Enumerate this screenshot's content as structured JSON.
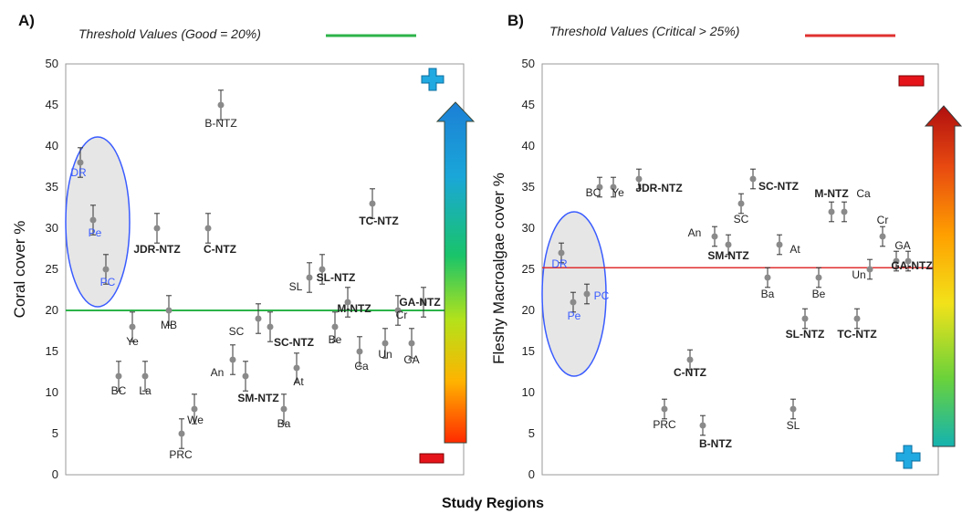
{
  "xlabel": "Study Regions",
  "colors": {
    "good_line": "#2db34a",
    "critical_line": "#e03030",
    "point": "#8a8a8a",
    "errorbar": "#333333",
    "ellipse_stroke": "#3a5cff",
    "ellipse_fill": "#e6e6e6",
    "blue_label": "#3a5cff",
    "plus_icon": "#21a9e1",
    "minus_icon": "#e5141b"
  },
  "icons": {
    "plus": "plus-icon",
    "minus": "minus-icon",
    "arrow": "gradient-up-arrow-icon"
  },
  "chart_data": [
    {
      "type": "scatter",
      "panel_label": "A)",
      "threshold_label": "Threshold Values  (Good = 20%)",
      "threshold": 20,
      "ylabel": "Coral cover %",
      "ylim": [
        0,
        50
      ],
      "yticks": [
        0,
        5,
        10,
        15,
        20,
        25,
        30,
        35,
        40,
        45,
        50
      ],
      "error": 1.8,
      "points": [
        {
          "label": "DR",
          "x": 1,
          "y": 38,
          "bold": false,
          "blue": true
        },
        {
          "label": "Pe",
          "x": 2,
          "y": 31,
          "bold": false,
          "blue": true
        },
        {
          "label": "PC",
          "x": 3,
          "y": 25,
          "bold": false,
          "blue": true
        },
        {
          "label": "BC",
          "x": 4,
          "y": 12,
          "bold": false,
          "blue": false
        },
        {
          "label": "Ye",
          "x": 5,
          "y": 18,
          "bold": false,
          "blue": false
        },
        {
          "label": "La",
          "x": 6,
          "y": 12,
          "bold": false,
          "blue": false
        },
        {
          "label": "JDR-NTZ",
          "x": 7,
          "y": 30,
          "bold": true,
          "blue": false
        },
        {
          "label": "MB",
          "x": 8,
          "y": 20,
          "bold": false,
          "blue": false
        },
        {
          "label": "PRC",
          "x": 9,
          "y": 5,
          "bold": false,
          "blue": false
        },
        {
          "label": "We",
          "x": 10,
          "y": 8,
          "bold": false,
          "blue": false
        },
        {
          "label": "C-NTZ",
          "x": 11,
          "y": 30,
          "bold": true,
          "blue": false
        },
        {
          "label": "B-NTZ",
          "x": 12,
          "y": 45,
          "bold": false,
          "blue": false
        },
        {
          "label": "An",
          "x": 13,
          "y": 14,
          "bold": false,
          "blue": false
        },
        {
          "label": "SM-NTZ",
          "x": 14,
          "y": 12,
          "bold": true,
          "blue": false
        },
        {
          "label": "SC",
          "x": 15,
          "y": 19,
          "bold": false,
          "blue": false
        },
        {
          "label": "SC-NTZ",
          "x": 16,
          "y": 18,
          "bold": true,
          "blue": false
        },
        {
          "label": "Ba",
          "x": 17,
          "y": 8,
          "bold": false,
          "blue": false
        },
        {
          "label": "At",
          "x": 18,
          "y": 13,
          "bold": false,
          "blue": false
        },
        {
          "label": "SL",
          "x": 19,
          "y": 24,
          "bold": false,
          "blue": false
        },
        {
          "label": "SL-NTZ",
          "x": 20,
          "y": 25,
          "bold": true,
          "blue": false
        },
        {
          "label": "Be",
          "x": 21,
          "y": 18,
          "bold": false,
          "blue": false
        },
        {
          "label": "M-NTZ",
          "x": 22,
          "y": 21,
          "bold": true,
          "blue": false
        },
        {
          "label": "TC-NTZ",
          "x": 23,
          "y": 33,
          "bold": true,
          "blue": false
        },
        {
          "label": "Ca",
          "x": 24,
          "y": 15,
          "bold": false,
          "blue": false
        },
        {
          "label": "Un",
          "x": 25,
          "y": 16,
          "bold": false,
          "blue": false
        },
        {
          "label": "Cr",
          "x": 26,
          "y": 20,
          "bold": false,
          "blue": false
        },
        {
          "label": "GA",
          "x": 27,
          "y": 16,
          "bold": false,
          "blue": false
        },
        {
          "label": "GA-NTZ",
          "x": 28,
          "y": 21,
          "bold": true,
          "blue": false
        }
      ]
    },
    {
      "type": "scatter",
      "panel_label": "B)",
      "threshold_label": "Threshold Values  (Critical > 25%)",
      "threshold": 25.2,
      "ylabel": "Fleshy Macroalgae cover %",
      "ylim": [
        0,
        50
      ],
      "yticks": [
        0,
        5,
        10,
        15,
        20,
        25,
        30,
        35,
        40,
        45,
        50
      ],
      "error": 1.2,
      "points": [
        {
          "label": "DR",
          "x": 1,
          "y": 27,
          "bold": false,
          "blue": true
        },
        {
          "label": "Pe",
          "x": 2,
          "y": 21,
          "bold": false,
          "blue": true
        },
        {
          "label": "PC",
          "x": 3,
          "y": 22,
          "bold": false,
          "blue": true
        },
        {
          "label": "BC",
          "x": 4,
          "y": 35,
          "bold": false,
          "blue": false
        },
        {
          "label": "Ye",
          "x": 5,
          "y": 35,
          "bold": false,
          "blue": false
        },
        {
          "label": "JDR-NTZ",
          "x": 6,
          "y": 36,
          "bold": true,
          "blue": false
        },
        {
          "label": "PRC",
          "x": 7,
          "y": 8,
          "bold": false,
          "blue": false
        },
        {
          "label": "B-NTZ",
          "x": 8,
          "y": 6,
          "bold": true,
          "blue": false
        },
        {
          "label": "C-NTZ",
          "x": 9,
          "y": 14,
          "bold": true,
          "blue": false
        },
        {
          "label": "An",
          "x": 10,
          "y": 29,
          "bold": false,
          "blue": false
        },
        {
          "label": "SM-NTZ",
          "x": 11,
          "y": 28,
          "bold": true,
          "blue": false
        },
        {
          "label": "SC",
          "x": 12,
          "y": 33,
          "bold": false,
          "blue": false
        },
        {
          "label": "SC-NTZ",
          "x": 13,
          "y": 36,
          "bold": true,
          "blue": false
        },
        {
          "label": "At",
          "x": 14,
          "y": 28,
          "bold": false,
          "blue": false
        },
        {
          "label": "Ba",
          "x": 15,
          "y": 24,
          "bold": false,
          "blue": false
        },
        {
          "label": "SL",
          "x": 16,
          "y": 8,
          "bold": false,
          "blue": false
        },
        {
          "label": "SL-NTZ",
          "x": 17,
          "y": 19,
          "bold": true,
          "blue": false
        },
        {
          "label": "Be",
          "x": 18,
          "y": 24,
          "bold": false,
          "blue": false
        },
        {
          "label": "M-NTZ",
          "x": 19,
          "y": 32,
          "bold": true,
          "blue": false
        },
        {
          "label": "Ca",
          "x": 20,
          "y": 32,
          "bold": false,
          "blue": false
        },
        {
          "label": "TC-NTZ",
          "x": 21,
          "y": 19,
          "bold": true,
          "blue": false
        },
        {
          "label": "Un",
          "x": 22,
          "y": 25,
          "bold": false,
          "blue": false
        },
        {
          "label": "Cr",
          "x": 23,
          "y": 29,
          "bold": false,
          "blue": false
        },
        {
          "label": "GA",
          "x": 24,
          "y": 26,
          "bold": false,
          "blue": false
        },
        {
          "label": "GA-NTZ",
          "x": 25,
          "y": 26,
          "bold": true,
          "blue": false
        }
      ]
    }
  ]
}
